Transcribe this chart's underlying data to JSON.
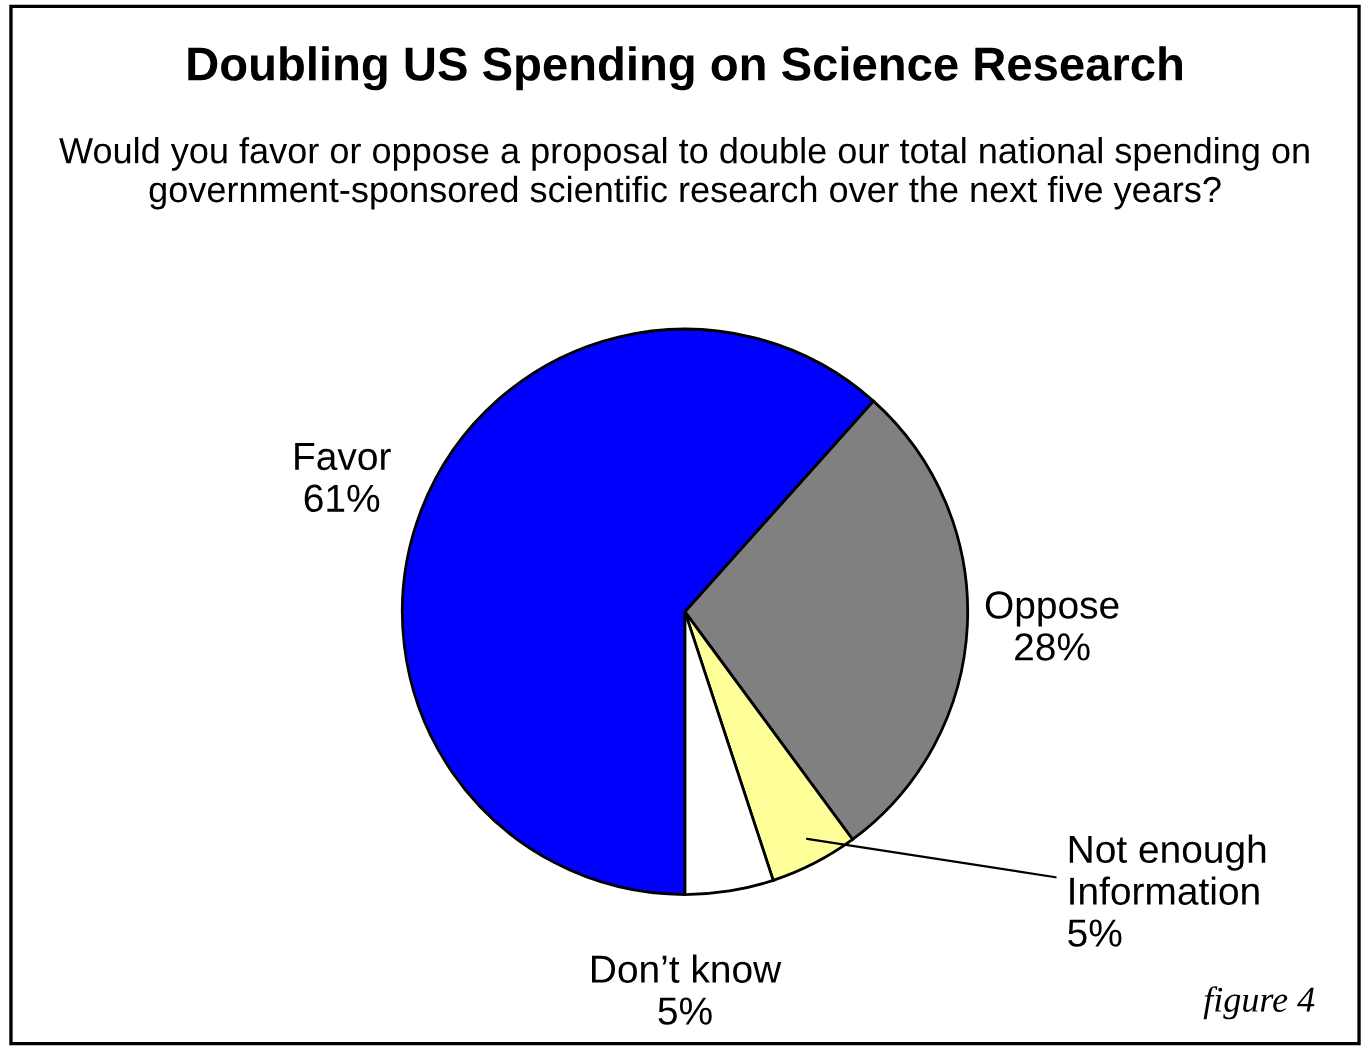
{
  "chart_data": {
    "type": "pie",
    "title": "Doubling US Spending on Science Research",
    "subtitle": "Would you favor or oppose a proposal to double our total national spending on government-sponsored scientific research over the next five years?",
    "categories": [
      "Favor",
      "Oppose",
      "Not enough\nInformation",
      "Don’t know"
    ],
    "values": [
      61,
      28,
      5,
      5
    ],
    "value_labels": [
      "61%",
      "28%",
      "5%",
      "5%"
    ],
    "colors": [
      "#0000ff",
      "#808080",
      "#ffff99",
      "#ffffff"
    ],
    "annotations": [
      "figure 4"
    ]
  }
}
